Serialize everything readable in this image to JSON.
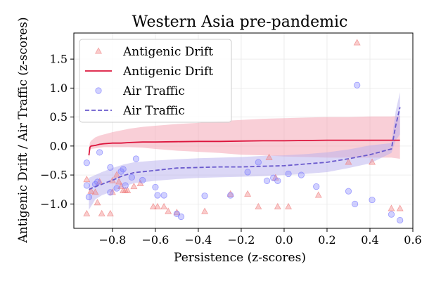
{
  "chart_data": {
    "type": "scatter",
    "title": "Western Asia pre-pandemic",
    "xlabel": "Persistence (z-scores)",
    "ylabel": "Antigenic Drift / Air Traffic (z-scores)",
    "xlim": [
      -0.98,
      0.6
    ],
    "ylim": [
      -1.42,
      1.95
    ],
    "xticks": [
      -0.8,
      -0.6,
      -0.4,
      -0.2,
      0.0,
      0.2,
      0.4,
      0.6
    ],
    "xtick_labels": [
      "−0.8",
      "−0.6",
      "−0.4",
      "−0.2",
      "0.0",
      "0.2",
      "0.4",
      "0.6"
    ],
    "yticks": [
      -1.0,
      -0.5,
      0.0,
      0.5,
      1.0,
      1.5
    ],
    "ytick_labels": [
      "−1.0",
      "−0.5",
      "0.0",
      "0.5",
      "1.0",
      "1.5"
    ],
    "grid": true,
    "legend_position": "top-left",
    "series": [
      {
        "name": "Antigenic Drift",
        "kind": "scatter",
        "marker": "triangle",
        "color": "#f08080",
        "points": [
          [
            -0.92,
            -1.17
          ],
          [
            -0.92,
            -0.58
          ],
          [
            -0.9,
            -0.78
          ],
          [
            -0.88,
            -0.8
          ],
          [
            -0.87,
            -0.98
          ],
          [
            -0.86,
            -0.62
          ],
          [
            -0.85,
            -1.17
          ],
          [
            -0.81,
            -1.17
          ],
          [
            -0.8,
            -0.8
          ],
          [
            -0.8,
            -0.6
          ],
          [
            -0.78,
            -0.5
          ],
          [
            -0.77,
            -0.62
          ],
          [
            -0.76,
            -0.7
          ],
          [
            -0.75,
            -0.77
          ],
          [
            -0.74,
            -0.77
          ],
          [
            -0.73,
            -0.77
          ],
          [
            -0.7,
            -0.7
          ],
          [
            -0.67,
            -0.65
          ],
          [
            -0.61,
            -1.05
          ],
          [
            -0.59,
            -1.05
          ],
          [
            -0.56,
            -1.05
          ],
          [
            -0.54,
            -1.13
          ],
          [
            -0.5,
            -1.15
          ],
          [
            -0.37,
            -1.13
          ],
          [
            -0.25,
            -0.83
          ],
          [
            -0.17,
            -0.83
          ],
          [
            -0.12,
            -1.05
          ],
          [
            -0.07,
            -0.2
          ],
          [
            -0.04,
            -0.55
          ],
          [
            -0.03,
            -1.05
          ],
          [
            0.02,
            -1.05
          ],
          [
            0.16,
            -0.85
          ],
          [
            0.3,
            -0.28
          ],
          [
            0.34,
            1.78
          ],
          [
            0.41,
            -0.28
          ],
          [
            0.5,
            -1.08
          ],
          [
            0.54,
            -1.08
          ]
        ]
      },
      {
        "name": "Antigenic Drift",
        "kind": "line",
        "color": "#dc143c",
        "x": [
          -0.91,
          -0.905,
          -0.9,
          -0.88,
          -0.86,
          -0.84,
          -0.8,
          -0.76,
          -0.72,
          -0.66,
          -0.6,
          -0.5,
          -0.4,
          -0.3,
          -0.2,
          -0.1,
          0.0,
          0.1,
          0.2,
          0.3,
          0.4,
          0.5,
          0.54
        ],
        "y": [
          -0.16,
          -0.02,
          0.0,
          0.01,
          0.03,
          0.04,
          0.05,
          0.05,
          0.06,
          0.07,
          0.07,
          0.075,
          0.08,
          0.08,
          0.085,
          0.09,
          0.09,
          0.095,
          0.1,
          0.1,
          0.1,
          0.1,
          0.1
        ],
        "band_upper": [
          -0.05,
          0.06,
          0.09,
          0.15,
          0.18,
          0.2,
          0.24,
          0.27,
          0.3,
          0.33,
          0.35,
          0.38,
          0.4,
          0.43,
          0.45,
          0.47,
          0.48,
          0.49,
          0.5,
          0.5,
          0.51,
          0.51,
          0.52
        ],
        "band_lower": [
          -0.24,
          -0.07,
          -0.05,
          -0.04,
          -0.03,
          -0.02,
          -0.02,
          -0.02,
          -0.02,
          -0.03,
          -0.05,
          -0.08,
          -0.1,
          -0.12,
          -0.15,
          -0.16,
          -0.18,
          -0.19,
          -0.2,
          -0.2,
          -0.2,
          -0.2,
          -0.22
        ],
        "band_color": "#f4a0b0"
      },
      {
        "name": "Air Traffic",
        "kind": "scatter",
        "marker": "circle",
        "color": "#7b7bff",
        "points": [
          [
            -0.92,
            -0.29
          ],
          [
            -0.92,
            -0.68
          ],
          [
            -0.91,
            -0.88
          ],
          [
            -0.88,
            -0.66
          ],
          [
            -0.87,
            -0.62
          ],
          [
            -0.86,
            -0.11
          ],
          [
            -0.81,
            -0.8
          ],
          [
            -0.81,
            -0.37
          ],
          [
            -0.78,
            -0.73
          ],
          [
            -0.76,
            -0.44
          ],
          [
            -0.75,
            -0.4
          ],
          [
            -0.74,
            -0.68
          ],
          [
            -0.71,
            -0.54
          ],
          [
            -0.69,
            -0.22
          ],
          [
            -0.66,
            -0.59
          ],
          [
            -0.6,
            -0.71
          ],
          [
            -0.59,
            -0.85
          ],
          [
            -0.56,
            -0.85
          ],
          [
            -0.5,
            -1.17
          ],
          [
            -0.48,
            -1.22
          ],
          [
            -0.37,
            -0.86
          ],
          [
            -0.25,
            -0.85
          ],
          [
            -0.17,
            -0.45
          ],
          [
            -0.12,
            -0.28
          ],
          [
            -0.08,
            -0.6
          ],
          [
            -0.05,
            -0.55
          ],
          [
            -0.03,
            -0.6
          ],
          [
            0.02,
            -0.48
          ],
          [
            0.08,
            -0.5
          ],
          [
            0.15,
            -0.7
          ],
          [
            0.3,
            -0.78
          ],
          [
            0.33,
            -1.0
          ],
          [
            0.34,
            1.05
          ],
          [
            0.41,
            -0.93
          ],
          [
            0.5,
            -1.18
          ],
          [
            0.54,
            -1.28
          ]
        ]
      },
      {
        "name": "Air Traffic",
        "kind": "line",
        "dashed": true,
        "color": "#6a5acd",
        "x": [
          -0.91,
          -0.88,
          -0.85,
          -0.8,
          -0.75,
          -0.7,
          -0.6,
          -0.5,
          -0.4,
          -0.3,
          -0.2,
          -0.1,
          0.0,
          0.1,
          0.2,
          0.3,
          0.4,
          0.5,
          0.52,
          0.54
        ],
        "y": [
          -0.75,
          -0.7,
          -0.66,
          -0.59,
          -0.51,
          -0.46,
          -0.42,
          -0.38,
          -0.37,
          -0.36,
          -0.36,
          -0.35,
          -0.34,
          -0.31,
          -0.28,
          -0.22,
          -0.15,
          -0.05,
          0.35,
          0.67
        ],
        "band_upper": [
          -0.55,
          -0.5,
          -0.45,
          -0.38,
          -0.32,
          -0.28,
          -0.25,
          -0.23,
          -0.21,
          -0.2,
          -0.19,
          -0.17,
          -0.16,
          -0.14,
          -0.11,
          -0.06,
          0.01,
          0.05,
          0.6,
          0.93
        ],
        "band_lower": [
          -1.1,
          -0.92,
          -0.85,
          -0.78,
          -0.7,
          -0.64,
          -0.6,
          -0.57,
          -0.55,
          -0.54,
          -0.53,
          -0.52,
          -0.5,
          -0.48,
          -0.45,
          -0.38,
          -0.3,
          -0.12,
          0.1,
          0.2
        ],
        "band_color": "#b8b0ee"
      }
    ]
  }
}
